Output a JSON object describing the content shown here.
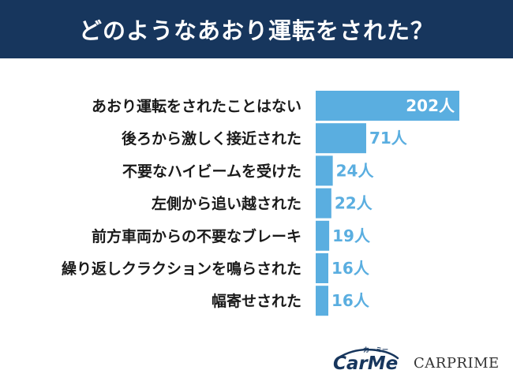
{
  "header": {
    "title": "どのようなあおり運転をされた？"
  },
  "chart_data": {
    "type": "bar",
    "orientation": "horizontal",
    "title": "どのようなあおり運転をされた？",
    "categories": [
      "あおり運転をされたことはない",
      "後ろから激しく接近された",
      "不要なハイビームを受けた",
      "左側から追い越された",
      "前方車両からの不要なブレーキ",
      "繰り返しクラクションを鳴らされた",
      "幅寄せされた"
    ],
    "values": [
      202,
      71,
      24,
      22,
      19,
      16,
      16
    ],
    "value_labels": [
      "202人",
      "71人",
      "24人",
      "22人",
      "19人",
      "16人",
      "16人"
    ],
    "bar_color": "#5aaee0",
    "label_color_inside": "#ffffff",
    "label_color_outside": "#5aaee0",
    "xlim": [
      0,
      202
    ],
    "grid": false,
    "legend": "none"
  },
  "logos": {
    "carme": {
      "text": "CarMe",
      "ruby": "カーミー"
    },
    "carprime": {
      "text": "CARPRIME"
    }
  }
}
